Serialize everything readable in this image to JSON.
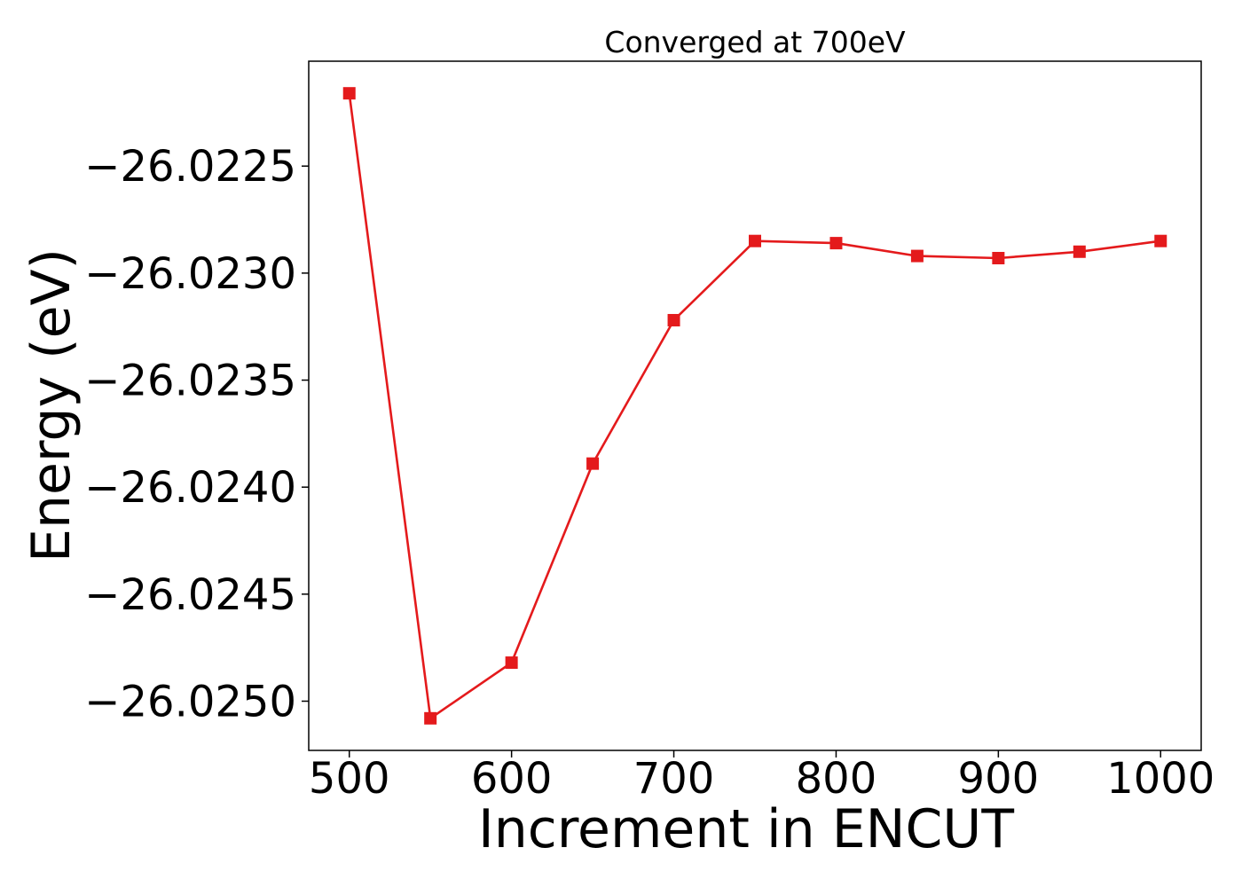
{
  "chart_data": {
    "type": "line",
    "title": "Converged at 700eV",
    "xlabel": "Increment in ENCUT",
    "ylabel": "Energy (eV)",
    "x": [
      500,
      550,
      600,
      650,
      700,
      750,
      800,
      850,
      900,
      950,
      1000
    ],
    "series": [
      {
        "values": [
          -26.02216,
          -26.02508,
          -26.02482,
          -26.02389,
          -26.02322,
          -26.02285,
          -26.02286,
          -26.02292,
          -26.02293,
          -26.0229,
          -26.02285
        ],
        "color": "#e41a1c",
        "marker": "square"
      }
    ],
    "xlim": [
      475,
      1025
    ],
    "ylim": [
      -26.02523,
      -26.02201
    ],
    "xticks": [
      500,
      600,
      700,
      800,
      900,
      1000
    ],
    "xtick_labels": [
      "500",
      "600",
      "700",
      "800",
      "900",
      "1000"
    ],
    "yticks": [
      -26.0225,
      -26.023,
      -26.0235,
      -26.024,
      -26.0245,
      -26.025
    ],
    "ytick_labels": [
      "−26.0225",
      "−26.0230",
      "−26.0235",
      "−26.0240",
      "−26.0245",
      "−26.0250"
    ],
    "grid": false
  }
}
